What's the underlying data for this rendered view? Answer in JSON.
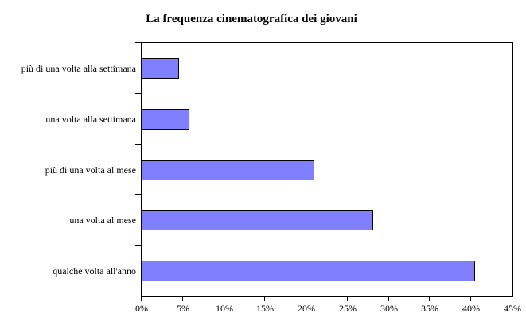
{
  "chart_data": {
    "type": "bar",
    "orientation": "horizontal",
    "title": "La frequenza cinematografica dei giovani",
    "categories": [
      "più di una volta alla settimana",
      "una volta alla settimana",
      "più di una volta al mese",
      "una volta al mese",
      "qualche volta all'anno"
    ],
    "categories_order": "top-to-bottom",
    "values": [
      4.5,
      5.8,
      21,
      28.1,
      40.5
    ],
    "value_unit": "%",
    "xlabel": "",
    "ylabel": "",
    "xlim": [
      0,
      45
    ],
    "x_tick_step": 5,
    "x_ticks": [
      "0%",
      "5%",
      "10%",
      "15%",
      "20%",
      "25%",
      "30%",
      "35%",
      "40%",
      "45%"
    ],
    "grid": false,
    "legend": false,
    "colors": {
      "bar_fill": "#8080ff",
      "bar_border": "#000000",
      "plot_border": "#000000",
      "text": "#000000",
      "background": "#ffffff"
    }
  }
}
